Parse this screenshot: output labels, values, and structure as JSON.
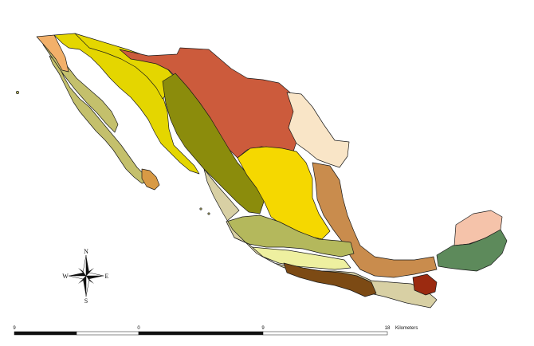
{
  "compass": {
    "north": "N",
    "south": "S",
    "east": "E",
    "west": "W"
  },
  "scale_bar": {
    "labels": [
      "9",
      "0",
      "9",
      "18"
    ],
    "unit": "Kilometers"
  },
  "colors": {
    "baja_california": "#c4c06c",
    "baja_tip": "#d89a45",
    "northwest_corner": "#f2b06a",
    "sonoran_yellow": "#e4d600",
    "chihuahua_red": "#cc5b3c",
    "sierra_madre_occidental": "#8b8c0c",
    "altiplano_yellow": "#f5d800",
    "tamaulipas_cream": "#f9e5c7",
    "gulf_brown": "#c98c4d",
    "yucatan_green": "#5d8a5b",
    "yucatan_pink": "#f5c3aa",
    "neovolcanic_olive": "#b4b85c",
    "balsas_pale": "#eef0a0",
    "pacific_coast_tan": "#d8d0a4",
    "sierra_madre_sur_brown": "#7c4a14",
    "chiapas_darkred": "#9b2a10"
  }
}
